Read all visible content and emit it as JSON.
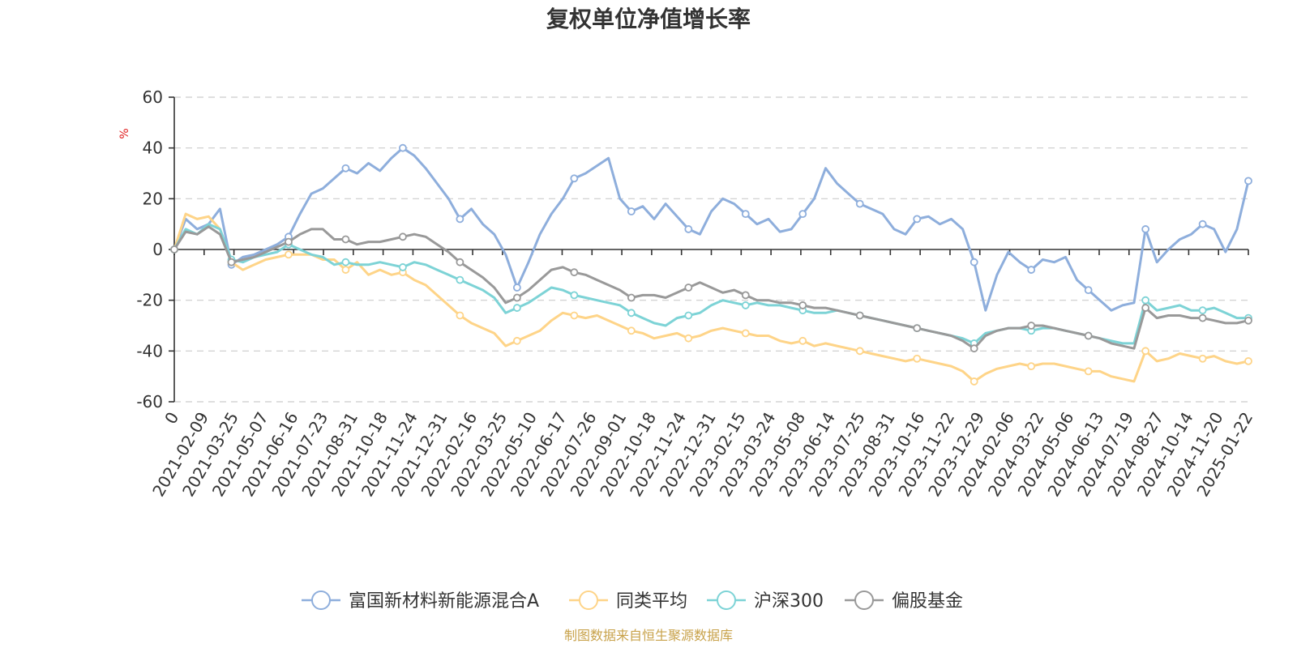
{
  "chart_data": {
    "type": "line",
    "title": "复权单位净值增长率",
    "ylabel": "%",
    "ylim": [
      -60,
      60
    ],
    "yticks": [
      60,
      40,
      20,
      0,
      -20,
      -40,
      -60
    ],
    "x_ticks": [
      "0",
      "2021-02-09",
      "2021-03-25",
      "2021-05-07",
      "2021-06-16",
      "2021-07-23",
      "2021-08-31",
      "2021-10-18",
      "2021-11-24",
      "2021-12-31",
      "2022-02-16",
      "2022-03-25",
      "2022-05-10",
      "2022-06-17",
      "2022-07-26",
      "2022-09-01",
      "2022-10-18",
      "2022-11-24",
      "2022-12-31",
      "2023-02-15",
      "2023-03-24",
      "2023-05-08",
      "2023-06-14",
      "2023-07-25",
      "2023-08-31",
      "2023-10-16",
      "2023-11-22",
      "2023-12-29",
      "2024-02-06",
      "2024-03-22",
      "2024-05-06",
      "2024-06-13",
      "2024-07-19",
      "2024-08-27",
      "2024-10-14",
      "2024-11-20",
      "2025-01-22"
    ],
    "grid": true,
    "legend_position": "bottom",
    "series": [
      {
        "name": "富国新材料新能源混合A",
        "color": "#8eaedc",
        "values": [
          0,
          12,
          8,
          10,
          16,
          -6,
          -3,
          -2,
          0,
          2,
          5,
          14,
          22,
          24,
          28,
          32,
          30,
          34,
          31,
          36,
          40,
          37,
          32,
          26,
          20,
          12,
          16,
          10,
          6,
          -2,
          -15,
          -5,
          6,
          14,
          20,
          28,
          30,
          33,
          36,
          20,
          15,
          17,
          12,
          18,
          13,
          8,
          6,
          15,
          20,
          18,
          14,
          10,
          12,
          7,
          8,
          14,
          20,
          32,
          26,
          22,
          18,
          16,
          14,
          8,
          6,
          12,
          13,
          10,
          12,
          8,
          -5,
          -24,
          -10,
          -1,
          -5,
          -8,
          -4,
          -5,
          -3,
          -12,
          -16,
          -20,
          -24,
          -22,
          -21,
          8,
          -5,
          0,
          4,
          6,
          10,
          8,
          -1,
          8,
          27
        ]
      },
      {
        "name": "同类平均",
        "color": "#fed488",
        "values": [
          0,
          14,
          12,
          13,
          8,
          -5,
          -8,
          -6,
          -4,
          -3,
          -2,
          -2,
          -2,
          -4,
          -4,
          -8,
          -5,
          -10,
          -8,
          -10,
          -9,
          -12,
          -14,
          -18,
          -22,
          -26,
          -29,
          -31,
          -33,
          -38,
          -36,
          -34,
          -32,
          -28,
          -25,
          -26,
          -27,
          -26,
          -28,
          -30,
          -32,
          -33,
          -35,
          -34,
          -33,
          -35,
          -34,
          -32,
          -31,
          -32,
          -33,
          -34,
          -34,
          -36,
          -37,
          -36,
          -38,
          -37,
          -38,
          -39,
          -40,
          -41,
          -42,
          -43,
          -44,
          -43,
          -44,
          -45,
          -46,
          -48,
          -52,
          -49,
          -47,
          -46,
          -45,
          -46,
          -45,
          -45,
          -46,
          -47,
          -48,
          -48,
          -50,
          -51,
          -52,
          -40,
          -44,
          -43,
          -41,
          -42,
          -43,
          -42,
          -44,
          -45,
          -44
        ]
      },
      {
        "name": "沪深300",
        "color": "#7dd3d6",
        "values": [
          0,
          8,
          6,
          10,
          8,
          -4,
          -5,
          -3,
          -2,
          -1,
          2,
          0,
          -2,
          -3,
          -6,
          -5,
          -6,
          -6,
          -5,
          -6,
          -7,
          -5,
          -6,
          -8,
          -10,
          -12,
          -14,
          -16,
          -19,
          -25,
          -23,
          -21,
          -18,
          -15,
          -16,
          -18,
          -19,
          -20,
          -21,
          -22,
          -25,
          -27,
          -29,
          -30,
          -27,
          -26,
          -25,
          -22,
          -20,
          -21,
          -22,
          -21,
          -22,
          -22,
          -23,
          -24,
          -25,
          -25,
          -24,
          -25,
          -26,
          -27,
          -28,
          -29,
          -30,
          -31,
          -32,
          -33,
          -34,
          -35,
          -37,
          -33,
          -32,
          -31,
          -31,
          -32,
          -31,
          -31,
          -32,
          -33,
          -34,
          -35,
          -36,
          -37,
          -37,
          -20,
          -24,
          -23,
          -22,
          -24,
          -24,
          -23,
          -25,
          -27,
          -27
        ]
      },
      {
        "name": "偏股基金",
        "color": "#999999",
        "values": [
          0,
          7,
          6,
          9,
          6,
          -5,
          -4,
          -3,
          -1,
          1,
          3,
          6,
          8,
          8,
          4,
          4,
          2,
          3,
          3,
          4,
          5,
          6,
          5,
          2,
          -1,
          -5,
          -8,
          -11,
          -15,
          -21,
          -19,
          -16,
          -12,
          -8,
          -7,
          -9,
          -10,
          -12,
          -14,
          -16,
          -19,
          -18,
          -18,
          -19,
          -17,
          -15,
          -13,
          -15,
          -17,
          -16,
          -18,
          -20,
          -20,
          -21,
          -21,
          -22,
          -23,
          -23,
          -24,
          -25,
          -26,
          -27,
          -28,
          -29,
          -30,
          -31,
          -32,
          -33,
          -34,
          -36,
          -39,
          -34,
          -32,
          -31,
          -31,
          -30,
          -30,
          -31,
          -32,
          -33,
          -34,
          -35,
          -37,
          -38,
          -39,
          -23,
          -27,
          -26,
          -26,
          -27,
          -27,
          -28,
          -29,
          -29,
          -28
        ]
      }
    ]
  },
  "source_note": "制图数据来自恒生聚源数据库"
}
